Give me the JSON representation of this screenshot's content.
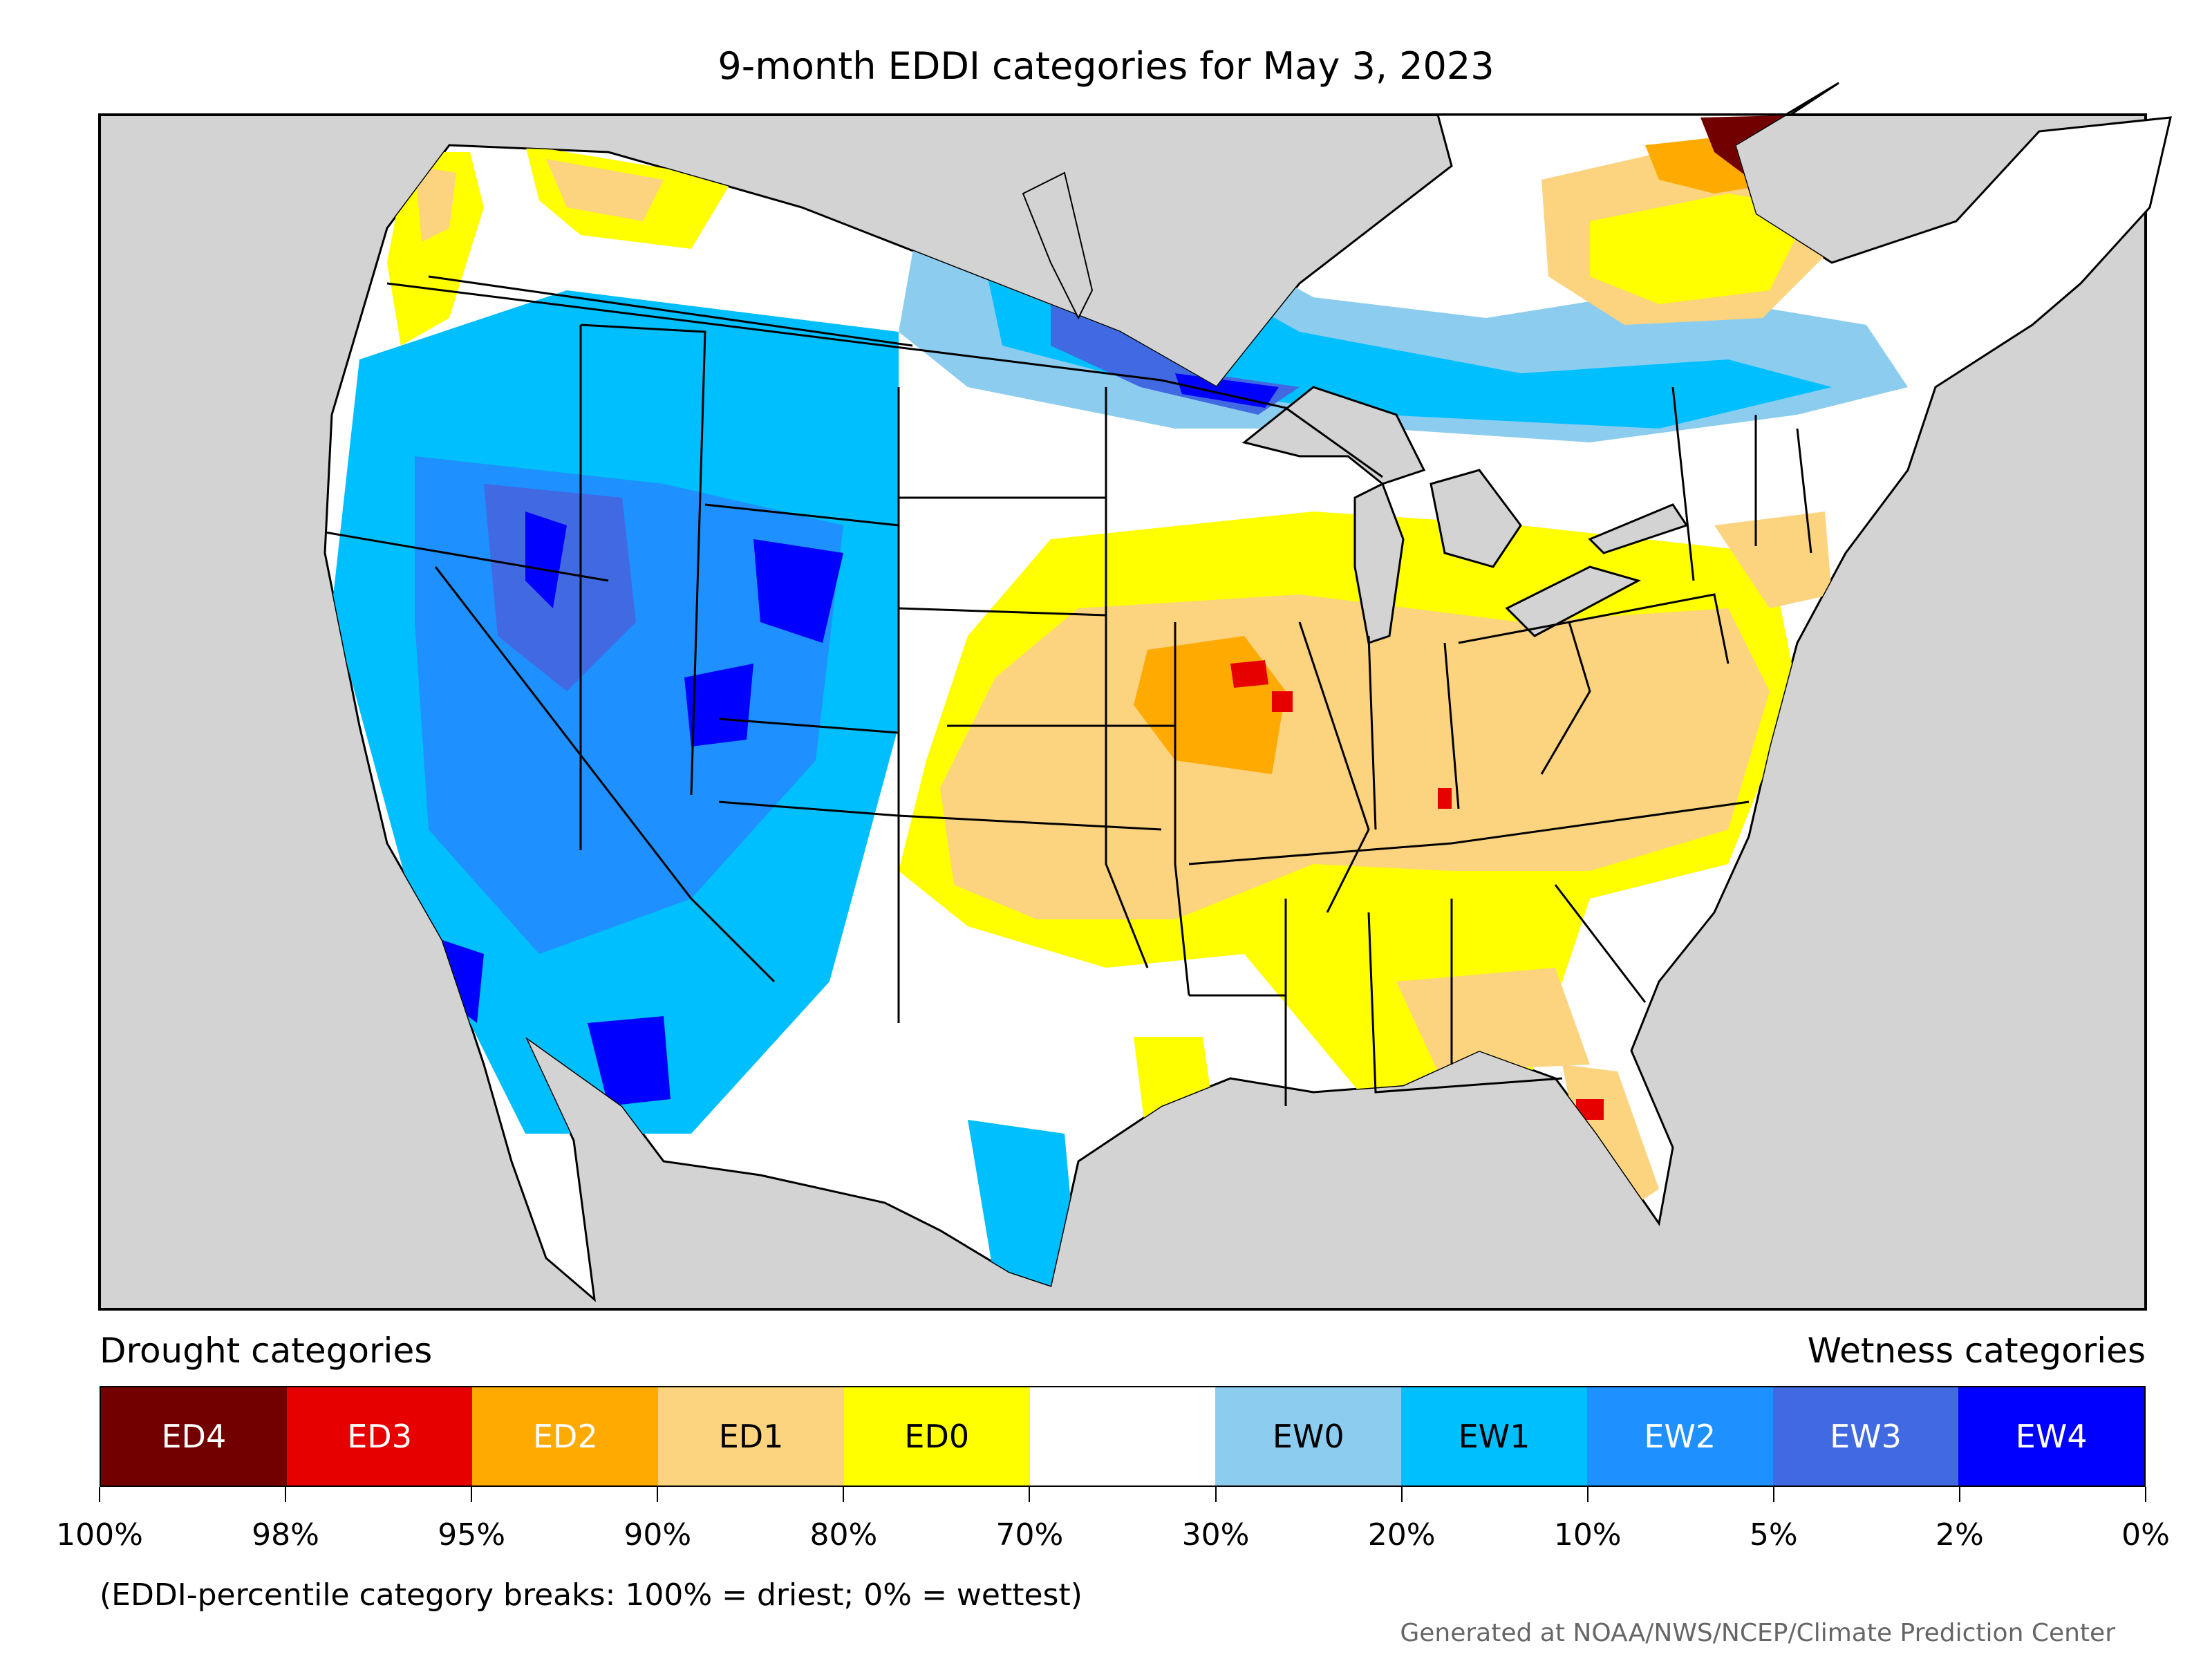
{
  "title": "9-month EDDI categories for May 3, 2023",
  "legend": {
    "drought_label": "Drought categories",
    "wetness_label": "Wetness categories",
    "categories": [
      {
        "label": "ED4",
        "color": "#730000",
        "text_color": "#ffffff"
      },
      {
        "label": "ED3",
        "color": "#e60000",
        "text_color": "#ffffff"
      },
      {
        "label": "ED2",
        "color": "#ffaa00",
        "text_color": "#ffffff"
      },
      {
        "label": "ED1",
        "color": "#fcd37f",
        "text_color": "#000000"
      },
      {
        "label": "ED0",
        "color": "#ffff00",
        "text_color": "#000000"
      },
      {
        "label": "",
        "color": "#ffffff",
        "text_color": "#000000"
      },
      {
        "label": "EW0",
        "color": "#8ccdef",
        "text_color": "#000000"
      },
      {
        "label": "EW1",
        "color": "#00bfff",
        "text_color": "#000000"
      },
      {
        "label": "EW2",
        "color": "#1e90ff",
        "text_color": "#ffffff"
      },
      {
        "label": "EW3",
        "color": "#4169e1",
        "text_color": "#ffffff"
      },
      {
        "label": "EW4",
        "color": "#0000ff",
        "text_color": "#ffffff"
      }
    ],
    "ticks": [
      "100%",
      "98%",
      "95%",
      "90%",
      "80%",
      "70%",
      "30%",
      "20%",
      "10%",
      "5%",
      "2%",
      "0%"
    ]
  },
  "note": "(EDDI-percentile category breaks: 100% = driest; 0% = wettest)",
  "credit": "Generated at NOAA/NWS/NCEP/Climate Prediction Center",
  "colors": {
    "background": "#d3d3d3",
    "land": "#ffffff",
    "border": "#000000"
  }
}
